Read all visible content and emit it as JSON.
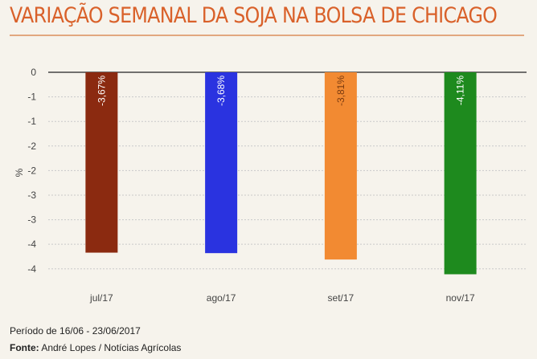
{
  "header": {
    "title": "VARIAÇÃO SEMANAL DA SOJA NA BOLSA DE CHICAGO"
  },
  "footer": {
    "period": "Período de 16/06 - 23/06/2017",
    "source_label": "Fonte:",
    "source_value": "André Lopes / Notícias Agrícolas"
  },
  "chart_data": {
    "type": "bar",
    "title": "VARIAÇÃO SEMANAL DA SOJA NA BOLSA DE CHICAGO",
    "xlabel": "",
    "ylabel": "%",
    "categories": [
      "jul/17",
      "ago/17",
      "set/17",
      "nov/17"
    ],
    "values": [
      -3.67,
      -3.68,
      -3.81,
      -4.11
    ],
    "data_labels": [
      "-3,67%",
      "-3,68%",
      "-3,81%",
      "-4,11%"
    ],
    "colors": [
      "#8b2a10",
      "#2a33e0",
      "#f28a32",
      "#1e8a1e"
    ],
    "label_colors": [
      "#ffffff",
      "#ffffff",
      "#7a3a10",
      "#ffffff"
    ],
    "y_tick_values": [
      0,
      -0.5,
      -1,
      -1.5,
      -2,
      -2.5,
      -3,
      -3.5,
      -4
    ],
    "y_tick_labels": [
      "0",
      "-1",
      "-1",
      "-2",
      "-2",
      "-3",
      "-3",
      "-4",
      "-4"
    ],
    "ylim": [
      -4.2,
      0
    ],
    "grid": true
  }
}
